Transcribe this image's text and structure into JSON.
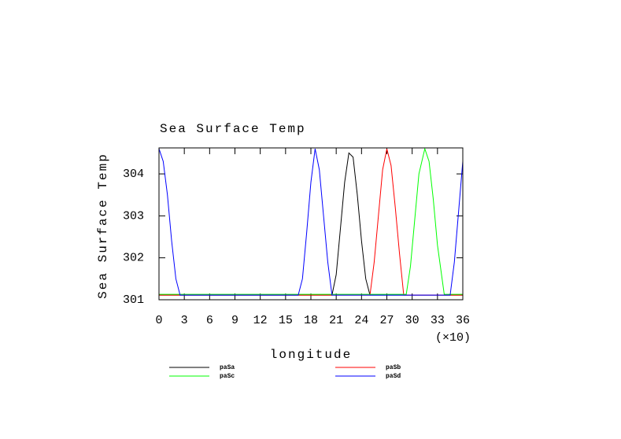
{
  "chart_data": {
    "type": "line",
    "title": "Sea Surface Temp",
    "ylabel": "Sea Surface Temp",
    "xlabel": "longitude",
    "x_scale_note": "(×10)",
    "xlim": [
      0,
      36
    ],
    "xticks": [
      0,
      3,
      6,
      9,
      12,
      15,
      18,
      21,
      24,
      27,
      30,
      33,
      36
    ],
    "ylim": [
      301,
      304.62
    ],
    "yticks": [
      301,
      302,
      303,
      304
    ],
    "series": [
      {
        "name": "paSa",
        "color": "#000000",
        "x": [
          0,
          20.5,
          21,
          21.5,
          22,
          22.5,
          23,
          23.5,
          24,
          24.5,
          25,
          36
        ],
        "values": [
          301.11,
          301.11,
          301.6,
          302.7,
          303.8,
          304.5,
          304.4,
          303.5,
          302.4,
          301.5,
          301.11,
          301.11
        ]
      },
      {
        "name": "paSb",
        "color": "#ff0000",
        "x": [
          0,
          25,
          25.5,
          26,
          26.5,
          27,
          27.5,
          28,
          28.5,
          29,
          36
        ],
        "values": [
          301.11,
          301.11,
          301.9,
          303.0,
          304.1,
          304.6,
          304.2,
          303.2,
          302.1,
          301.11,
          301.11
        ]
      },
      {
        "name": "paSc",
        "color": "#00ff00",
        "x": [
          0,
          29.3,
          29.8,
          30.3,
          30.8,
          31.5,
          32,
          32.5,
          33,
          33.8,
          36
        ],
        "values": [
          301.13,
          301.13,
          301.8,
          302.9,
          304.0,
          304.6,
          304.3,
          303.4,
          302.3,
          301.13,
          301.13
        ]
      },
      {
        "name": "paSd",
        "color": "#0000ff",
        "x": [
          0,
          0.5,
          1,
          1.5,
          2,
          2.5,
          16.5,
          17,
          17.5,
          18,
          18.5,
          19,
          19.5,
          20,
          20.5,
          34.5,
          35,
          35.5,
          36
        ],
        "values": [
          304.6,
          304.3,
          303.5,
          302.4,
          301.5,
          301.11,
          301.11,
          301.5,
          302.6,
          303.8,
          304.6,
          304.1,
          303.0,
          301.9,
          301.11,
          301.11,
          301.9,
          303.1,
          304.3
        ]
      }
    ]
  }
}
